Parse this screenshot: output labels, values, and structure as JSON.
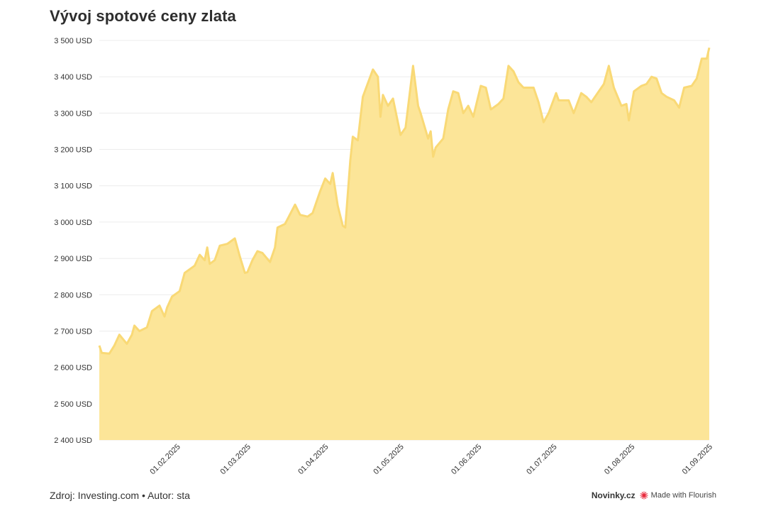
{
  "title": "Vývoj spotové ceny zlata",
  "footer": {
    "source": "Zdroj: Investing.com • Autor: sta",
    "brand": "Novinky.cz",
    "made_with": "Made with Flourish"
  },
  "colors": {
    "area_fill": "#fce598",
    "line": "#f9d976",
    "grid": "#ececec",
    "flourish_mark": "#e8273a"
  },
  "chart_data": {
    "type": "area",
    "title": "Vývoj spotové ceny zlata",
    "xlabel": "",
    "ylabel": "",
    "unit": "USD",
    "ylim": [
      2400,
      3500
    ],
    "xlim": [
      "2025-01-01",
      "2025-09-01"
    ],
    "grid": true,
    "y_ticks": [
      "3 500 USD",
      "3 400 USD",
      "3 300 USD",
      "3 200 USD",
      "3 100 USD",
      "3 000 USD",
      "2 900 USD",
      "2 800 USD",
      "2 700 USD",
      "2 600 USD",
      "2 500 USD",
      "2 400 USD"
    ],
    "y_tick_values": [
      3500,
      3400,
      3300,
      3200,
      3100,
      3000,
      2900,
      2800,
      2700,
      2600,
      2500,
      2400
    ],
    "x_ticks": [
      "01.02.2025",
      "01.03.2025",
      "01.04.2025",
      "01.05.2025",
      "01.06.2025",
      "01.07.2025",
      "01.08.2025",
      "01.09.2025"
    ],
    "x_tick_dates": [
      "2025-02-01",
      "2025-03-01",
      "2025-04-01",
      "2025-05-01",
      "2025-06-01",
      "2025-07-01",
      "2025-08-01",
      "2025-09-01"
    ],
    "series": [
      {
        "points": [
          [
            "2025-01-01",
            2660
          ],
          [
            "2025-01-02",
            2640
          ],
          [
            "2025-01-05",
            2638
          ],
          [
            "2025-01-07",
            2660
          ],
          [
            "2025-01-09",
            2690
          ],
          [
            "2025-01-12",
            2665
          ],
          [
            "2025-01-14",
            2690
          ],
          [
            "2025-01-15",
            2715
          ],
          [
            "2025-01-17",
            2700
          ],
          [
            "2025-01-20",
            2710
          ],
          [
            "2025-01-22",
            2755
          ],
          [
            "2025-01-25",
            2770
          ],
          [
            "2025-01-27",
            2740
          ],
          [
            "2025-01-28",
            2765
          ],
          [
            "2025-01-30",
            2795
          ],
          [
            "2025-02-02",
            2810
          ],
          [
            "2025-02-04",
            2860
          ],
          [
            "2025-02-06",
            2870
          ],
          [
            "2025-02-08",
            2880
          ],
          [
            "2025-02-10",
            2910
          ],
          [
            "2025-02-12",
            2895
          ],
          [
            "2025-02-13",
            2930
          ],
          [
            "2025-02-14",
            2885
          ],
          [
            "2025-02-16",
            2895
          ],
          [
            "2025-02-18",
            2935
          ],
          [
            "2025-02-21",
            2940
          ],
          [
            "2025-02-24",
            2955
          ],
          [
            "2025-02-26",
            2905
          ],
          [
            "2025-02-28",
            2860
          ],
          [
            "2025-03-01",
            2862
          ],
          [
            "2025-03-03",
            2895
          ],
          [
            "2025-03-05",
            2920
          ],
          [
            "2025-03-07",
            2915
          ],
          [
            "2025-03-10",
            2890
          ],
          [
            "2025-03-12",
            2930
          ],
          [
            "2025-03-13",
            2985
          ],
          [
            "2025-03-16",
            2995
          ],
          [
            "2025-03-20",
            3048
          ],
          [
            "2025-03-22",
            3020
          ],
          [
            "2025-03-25",
            3015
          ],
          [
            "2025-03-27",
            3025
          ],
          [
            "2025-03-30",
            3085
          ],
          [
            "2025-04-01",
            3120
          ],
          [
            "2025-04-03",
            3105
          ],
          [
            "2025-04-04",
            3135
          ],
          [
            "2025-04-06",
            3045
          ],
          [
            "2025-04-08",
            2990
          ],
          [
            "2025-04-09",
            2985
          ],
          [
            "2025-04-11",
            3170
          ],
          [
            "2025-04-12",
            3235
          ],
          [
            "2025-04-14",
            3225
          ],
          [
            "2025-04-16",
            3345
          ],
          [
            "2025-04-20",
            3420
          ],
          [
            "2025-04-22",
            3400
          ],
          [
            "2025-04-23",
            3290
          ],
          [
            "2025-04-24",
            3350
          ],
          [
            "2025-04-26",
            3320
          ],
          [
            "2025-04-28",
            3340
          ],
          [
            "2025-05-01",
            3240
          ],
          [
            "2025-05-03",
            3260
          ],
          [
            "2025-05-06",
            3430
          ],
          [
            "2025-05-08",
            3320
          ],
          [
            "2025-05-09",
            3300
          ],
          [
            "2025-05-12",
            3230
          ],
          [
            "2025-05-13",
            3250
          ],
          [
            "2025-05-14",
            3180
          ],
          [
            "2025-05-15",
            3205
          ],
          [
            "2025-05-18",
            3230
          ],
          [
            "2025-05-20",
            3310
          ],
          [
            "2025-05-22",
            3360
          ],
          [
            "2025-05-24",
            3355
          ],
          [
            "2025-05-26",
            3300
          ],
          [
            "2025-05-28",
            3320
          ],
          [
            "2025-05-30",
            3290
          ],
          [
            "2025-06-02",
            3375
          ],
          [
            "2025-06-04",
            3370
          ],
          [
            "2025-06-06",
            3310
          ],
          [
            "2025-06-09",
            3325
          ],
          [
            "2025-06-11",
            3340
          ],
          [
            "2025-06-13",
            3430
          ],
          [
            "2025-06-15",
            3415
          ],
          [
            "2025-06-17",
            3385
          ],
          [
            "2025-06-19",
            3370
          ],
          [
            "2025-06-23",
            3370
          ],
          [
            "2025-06-25",
            3330
          ],
          [
            "2025-06-27",
            3275
          ],
          [
            "2025-06-29",
            3300
          ],
          [
            "2025-07-02",
            3355
          ],
          [
            "2025-07-03",
            3335
          ],
          [
            "2025-07-07",
            3335
          ],
          [
            "2025-07-09",
            3300
          ],
          [
            "2025-07-12",
            3355
          ],
          [
            "2025-07-14",
            3345
          ],
          [
            "2025-07-16",
            3330
          ],
          [
            "2025-07-18",
            3350
          ],
          [
            "2025-07-21",
            3380
          ],
          [
            "2025-07-23",
            3430
          ],
          [
            "2025-07-25",
            3370
          ],
          [
            "2025-07-28",
            3320
          ],
          [
            "2025-07-30",
            3325
          ],
          [
            "2025-07-31",
            3280
          ],
          [
            "2025-08-02",
            3360
          ],
          [
            "2025-08-05",
            3375
          ],
          [
            "2025-08-07",
            3380
          ],
          [
            "2025-08-09",
            3400
          ],
          [
            "2025-08-11",
            3395
          ],
          [
            "2025-08-13",
            3355
          ],
          [
            "2025-08-15",
            3345
          ],
          [
            "2025-08-18",
            3335
          ],
          [
            "2025-08-20",
            3315
          ],
          [
            "2025-08-22",
            3370
          ],
          [
            "2025-08-25",
            3375
          ],
          [
            "2025-08-27",
            3395
          ],
          [
            "2025-08-29",
            3450
          ],
          [
            "2025-08-31",
            3450
          ],
          [
            "2025-09-01",
            3480
          ]
        ]
      }
    ]
  }
}
